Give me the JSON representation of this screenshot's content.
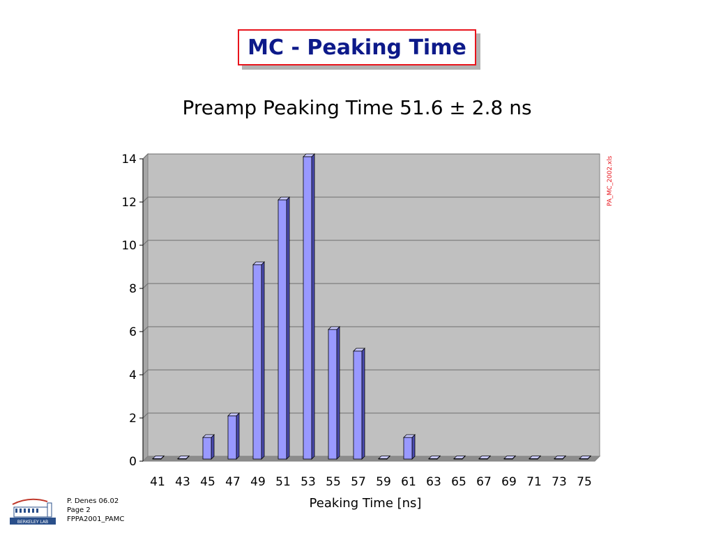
{
  "slide": {
    "title": "MC - Peaking Time",
    "side_note": "PA_MC_2002.xls",
    "footer": {
      "author": "P. Denes 06.02",
      "page": "Page 2",
      "doc": "FPPA2001_PAMC",
      "logo_label": "BERKELEY LAB"
    }
  },
  "colors": {
    "title_text": "#0d1a8a",
    "title_border": "#e8141c",
    "bar_fill": "#9999ff",
    "plot_bg": "#c0c0c0"
  },
  "chart_data": {
    "type": "bar",
    "title": "Preamp Peaking Time 51.6 ± 2.8 ns",
    "xlabel": "Peaking Time [ns]",
    "ylabel": "",
    "categories": [
      "41",
      "43",
      "45",
      "47",
      "49",
      "51",
      "53",
      "55",
      "57",
      "59",
      "61",
      "63",
      "65",
      "67",
      "69",
      "71",
      "73",
      "75"
    ],
    "values": [
      0,
      0,
      1,
      2,
      9,
      12,
      14,
      6,
      5,
      0,
      1,
      0,
      0,
      0,
      0,
      0,
      0,
      0
    ],
    "ylim": [
      0,
      14
    ],
    "yticks": [
      0,
      2,
      4,
      6,
      8,
      10,
      12,
      14
    ],
    "grid": true
  }
}
